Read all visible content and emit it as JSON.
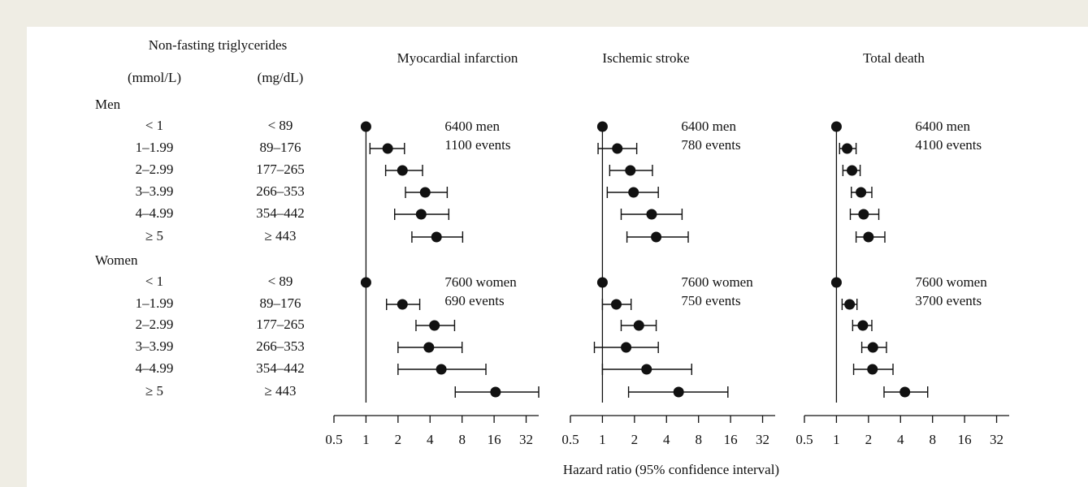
{
  "row_labels": {
    "header": "Non-fasting triglycerides",
    "columns": [
      "(mmol/L)",
      "(mg/dL)"
    ],
    "groups": [
      {
        "name": "Men",
        "rows": [
          [
            "< 1",
            "< 89"
          ],
          [
            "1–1.99",
            "89–176"
          ],
          [
            "2–2.99",
            "177–265"
          ],
          [
            "3–3.99",
            "266–353"
          ],
          [
            "4–4.99",
            "354–442"
          ],
          [
            "≥ 5",
            "≥ 443"
          ]
        ]
      },
      {
        "name": "Women",
        "rows": [
          [
            "< 1",
            "< 89"
          ],
          [
            "1–1.99",
            "89–176"
          ],
          [
            "2–2.99",
            "177–265"
          ],
          [
            "3–3.99",
            "266–353"
          ],
          [
            "4–4.99",
            "354–442"
          ],
          [
            "≥ 5",
            "≥ 443"
          ]
        ]
      }
    ]
  },
  "x_label": "Hazard ratio (95% confidence interval)",
  "chart_data": [
    {
      "type": "forest",
      "title": "Myocardial infarction",
      "xscale": "log",
      "reference": 1,
      "color": "#111111",
      "xlim": [
        0.5,
        42
      ],
      "xticks": [
        0.5,
        1,
        2,
        4,
        8,
        16,
        32
      ],
      "groups": [
        {
          "annotation": [
            "6400 men",
            "1100 events"
          ],
          "estimates": [
            1,
            1.6,
            2.2,
            3.6,
            3.3,
            4.6
          ],
          "lower": [
            null,
            1.09,
            1.53,
            2.35,
            1.86,
            2.7
          ],
          "upper": [
            null,
            2.3,
            3.4,
            5.8,
            6.0,
            8.1
          ]
        },
        {
          "annotation": [
            "7600 women",
            "690 events"
          ],
          "estimates": [
            1,
            2.2,
            4.4,
            3.9,
            5.1,
            16.5
          ],
          "lower": [
            null,
            1.56,
            2.95,
            2.0,
            2.0,
            6.9
          ],
          "upper": [
            null,
            3.2,
            6.8,
            8.0,
            13.4,
            42
          ]
        }
      ]
    },
    {
      "type": "forest",
      "title": "Ischemic stroke",
      "xscale": "log",
      "reference": 1,
      "color": "#111111",
      "xlim": [
        0.5,
        42
      ],
      "xticks": [
        0.5,
        1,
        2,
        4,
        8,
        16,
        32
      ],
      "groups": [
        {
          "annotation": [
            "6400 men",
            "780 events"
          ],
          "estimates": [
            1,
            1.38,
            1.83,
            1.96,
            2.9,
            3.2
          ],
          "lower": [
            null,
            0.91,
            1.17,
            1.11,
            1.5,
            1.7
          ],
          "upper": [
            null,
            2.1,
            2.95,
            3.35,
            5.6,
            6.4
          ]
        },
        {
          "annotation": [
            "7600 women",
            "750 events"
          ],
          "estimates": [
            1,
            1.35,
            2.2,
            1.67,
            2.6,
            5.2
          ],
          "lower": [
            null,
            1.0,
            1.5,
            0.84,
            1.0,
            1.76
          ],
          "upper": [
            null,
            1.86,
            3.2,
            3.35,
            6.9,
            15.1
          ]
        }
      ]
    },
    {
      "type": "forest",
      "title": "Total death",
      "xscale": "log",
      "reference": 1,
      "color": "#111111",
      "xlim": [
        0.5,
        42
      ],
      "xticks": [
        0.5,
        1,
        2,
        4,
        8,
        16,
        32
      ],
      "groups": [
        {
          "annotation": [
            "6400 men",
            "4100 events"
          ],
          "estimates": [
            1,
            1.26,
            1.4,
            1.7,
            1.8,
            2.0
          ],
          "lower": [
            null,
            1.07,
            1.15,
            1.38,
            1.35,
            1.53
          ],
          "upper": [
            null,
            1.53,
            1.67,
            2.15,
            2.5,
            2.85
          ]
        },
        {
          "annotation": [
            "7600 women",
            "3700 events"
          ],
          "estimates": [
            1,
            1.33,
            1.77,
            2.2,
            2.18,
            4.4
          ],
          "lower": [
            null,
            1.13,
            1.42,
            1.73,
            1.45,
            2.8
          ],
          "upper": [
            null,
            1.56,
            2.15,
            2.95,
            3.4,
            7.2
          ]
        }
      ]
    }
  ]
}
